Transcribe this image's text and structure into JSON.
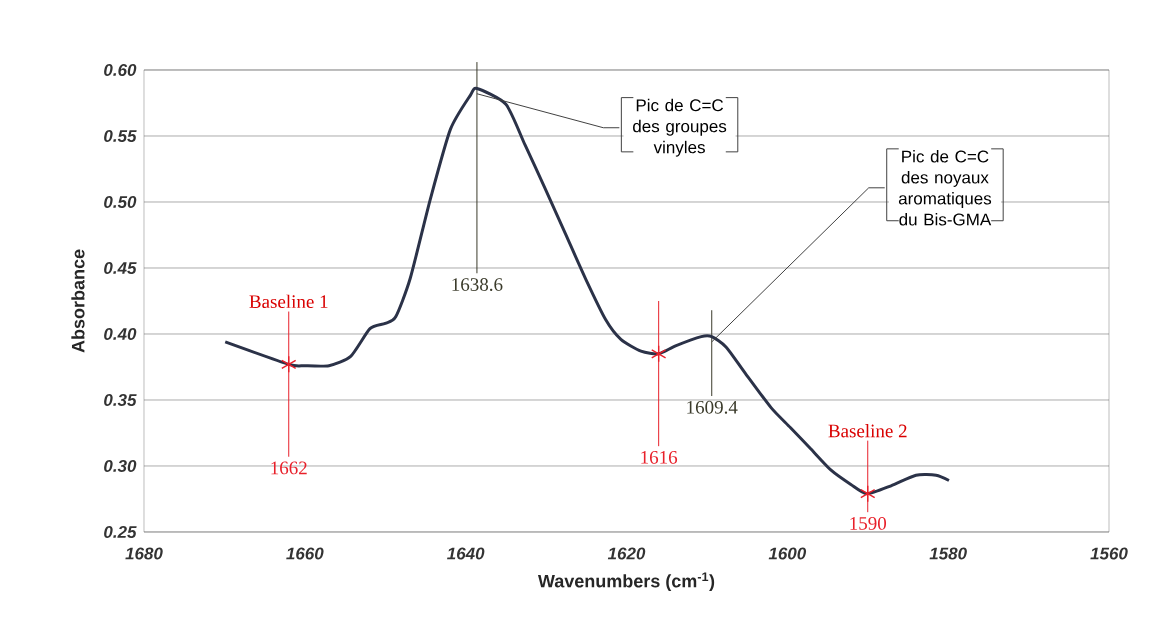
{
  "chart_data": {
    "type": "line",
    "xlabel": "Wavenumbers (cm$^{-1}$)",
    "ylabel": "Absorbance",
    "xlim": [
      1680,
      1560
    ],
    "xticks": [
      1680,
      1660,
      1640,
      1620,
      1600,
      1580,
      1560
    ],
    "ylim": [
      0.25,
      0.6
    ],
    "yticks": [
      {
        "value": 0.25,
        "label": "0.25"
      },
      {
        "value": 0.3,
        "label": "0.30"
      },
      {
        "value": 0.35,
        "label": "0.35"
      },
      {
        "value": 0.4,
        "label": "0.40"
      },
      {
        "value": 0.45,
        "label": "0.45"
      },
      {
        "value": 0.5,
        "label": "0.50"
      },
      {
        "value": 0.55,
        "label": "0.55"
      },
      {
        "value": 0.6,
        "label": "0.60"
      }
    ],
    "grid": "y",
    "series": [
      {
        "color": "#2b3248",
        "marker": "none",
        "x": [
          1669.9,
          1662,
          1660,
          1657,
          1654.3,
          1651.9,
          1650,
          1648.7,
          1646.9,
          1644.4,
          1641.9,
          1639.4,
          1638.6,
          1635,
          1632.6,
          1630.1,
          1627.6,
          1625.1,
          1622.6,
          1620.7,
          1618.2,
          1616,
          1613.9,
          1610.7,
          1609.4,
          1607.6,
          1605.2,
          1602,
          1599.6,
          1597.1,
          1594.6,
          1592.1,
          1590.1,
          1587.1,
          1584,
          1581.5,
          1579.9
        ],
        "values": [
          0.394,
          0.377,
          0.376,
          0.376,
          0.383,
          0.404,
          0.408,
          0.413,
          0.442,
          0.502,
          0.555,
          0.581,
          0.586,
          0.574,
          0.543,
          0.51,
          0.476,
          0.442,
          0.411,
          0.396,
          0.387,
          0.385,
          0.391,
          0.398,
          0.398,
          0.39,
          0.37,
          0.344,
          0.329,
          0.313,
          0.297,
          0.286,
          0.279,
          0.285,
          0.293,
          0.293,
          0.289
        ]
      },
      {
        "type": "scatter",
        "color": "#e8202a",
        "marker": "cross",
        "x": [
          1662,
          1616,
          1590
        ],
        "values": [
          0.377,
          0.385,
          0.279
        ]
      }
    ],
    "ref_lines": [
      {
        "axis": "x",
        "value": 1662,
        "label": "1662",
        "color": "#e8202a"
      },
      {
        "axis": "x",
        "value": 1616,
        "label": "1616",
        "color": "#e8202a"
      },
      {
        "axis": "x",
        "value": 1590,
        "label": "1590",
        "color": "#e8202a"
      },
      {
        "axis": "x",
        "value": 1638.6,
        "label": "1638.6",
        "color": "#3a3a2a"
      },
      {
        "axis": "x",
        "value": 1609.4,
        "label": "1609.4",
        "color": "#3a3a2a"
      }
    ],
    "annotations": [
      {
        "text": "Pic de C=C des groupes vinyles",
        "x": 1638.6,
        "y": 0.586
      },
      {
        "text": "Pic de C=C des noyaux aromatiques du Bis-GMA",
        "x": 1609.4,
        "y": 0.398
      },
      {
        "text": "Baseline 1",
        "x": 1662,
        "y": 0.377
      },
      {
        "text": "Baseline 2",
        "x": 1590,
        "y": 0.279
      }
    ]
  }
}
